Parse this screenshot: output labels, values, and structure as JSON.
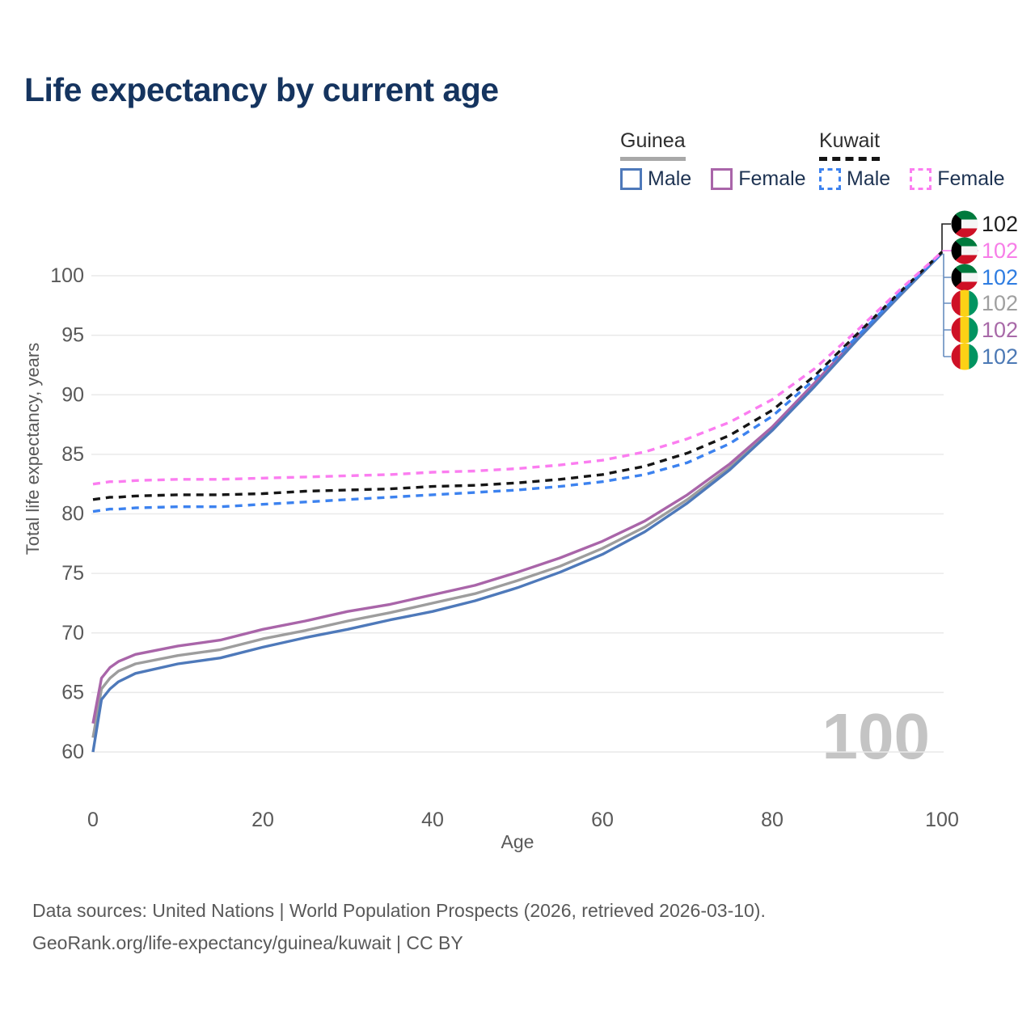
{
  "title": "Life expectancy by current age",
  "legend": {
    "groups": [
      {
        "country": "Guinea",
        "line_style": "solid",
        "items": [
          {
            "label": "Male",
            "color_key": "guinea_male"
          },
          {
            "label": "Female",
            "color_key": "guinea_female"
          }
        ]
      },
      {
        "country": "Kuwait",
        "line_style": "dashed",
        "items": [
          {
            "label": "Male",
            "color_key": "kuwait_male"
          },
          {
            "label": "Female",
            "color_key": "kuwait_female"
          }
        ]
      }
    ]
  },
  "colors": {
    "guinea_male": "#4e79ba",
    "guinea_female": "#a965a9",
    "guinea_both": "#9d9d9d",
    "kuwait_male": "#3c82ef",
    "kuwait_female": "#fb7df0",
    "kuwait_both": "#161616",
    "right_label_pink": "#f77ee8",
    "right_label_blue": "#2f7de1",
    "right_label_gray": "#a0a0a0",
    "right_label_purple": "#a869a8",
    "right_label_steel": "#4c79b5",
    "right_label_black": "#1f1f1f",
    "grid": "#e9e9e9",
    "axis_text": "#595959",
    "watermark": "#c4c4c4",
    "kuwait_flag_green": "#007a3d",
    "kuwait_flag_white": "#f5f5f5",
    "kuwait_flag_red": "#ce1126",
    "kuwait_flag_black": "#000000",
    "guinea_flag_red": "#ce1126",
    "guinea_flag_yellow": "#fcd116",
    "guinea_flag_green": "#009460"
  },
  "right_labels": [
    {
      "flag": "kuwait",
      "series": "Kuwait both sexes",
      "value": "102",
      "color_key": "right_label_black"
    },
    {
      "flag": "kuwait",
      "series": "Kuwait female",
      "value": "102",
      "color_key": "right_label_pink"
    },
    {
      "flag": "kuwait",
      "series": "Kuwait male",
      "value": "102",
      "color_key": "right_label_blue"
    },
    {
      "flag": "guinea",
      "series": "Guinea both sexes",
      "value": "102",
      "color_key": "right_label_gray"
    },
    {
      "flag": "guinea",
      "series": "Guinea female",
      "value": "102",
      "color_key": "right_label_purple"
    },
    {
      "flag": "guinea",
      "series": "Guinea male",
      "value": "102",
      "color_key": "right_label_steel"
    }
  ],
  "watermark": "100",
  "footer": {
    "line1": "Data sources: United Nations | World Population Prospects (2026, retrieved 2026-03-10).",
    "line2": "GeoRank.org/life-expectancy/guinea/kuwait | CC BY"
  },
  "chart_data": {
    "type": "line",
    "title": "Life expectancy by current age",
    "xlabel": "Age",
    "ylabel": "Total life expectancy, years",
    "xlim": [
      0,
      100
    ],
    "ylim": [
      60,
      100
    ],
    "xticks": [
      0,
      20,
      40,
      60,
      80,
      100
    ],
    "yticks": [
      60,
      65,
      70,
      75,
      80,
      85,
      90,
      95,
      100
    ],
    "grid": "horizontal",
    "legend_position": "top-right",
    "x": [
      0,
      1,
      2,
      3,
      5,
      10,
      15,
      20,
      25,
      30,
      35,
      40,
      45,
      50,
      55,
      60,
      65,
      70,
      75,
      80,
      85,
      90,
      95,
      100
    ],
    "series": [
      {
        "name": "Guinea both sexes",
        "country": "Guinea",
        "sex": "both",
        "style": "solid",
        "color_key": "guinea_both",
        "end_label": "102",
        "values": [
          61.2,
          65.3,
          66.2,
          66.8,
          67.4,
          68.1,
          68.6,
          69.5,
          70.2,
          71.0,
          71.7,
          72.5,
          73.3,
          74.4,
          75.6,
          77.1,
          78.9,
          81.2,
          83.9,
          87.1,
          90.8,
          94.7,
          98.3,
          101.9
        ]
      },
      {
        "name": "Guinea female",
        "country": "Guinea",
        "sex": "female",
        "style": "solid",
        "color_key": "guinea_female",
        "end_label": "102",
        "values": [
          62.4,
          66.2,
          67.1,
          67.6,
          68.2,
          68.9,
          69.4,
          70.3,
          71.0,
          71.8,
          72.4,
          73.2,
          74.0,
          75.1,
          76.3,
          77.7,
          79.4,
          81.6,
          84.2,
          87.3,
          91.0,
          94.8,
          98.4,
          102.0
        ]
      },
      {
        "name": "Guinea male",
        "country": "Guinea",
        "sex": "male",
        "style": "solid",
        "color_key": "guinea_male",
        "end_label": "102",
        "values": [
          60.0,
          64.4,
          65.3,
          65.9,
          66.6,
          67.4,
          67.9,
          68.8,
          69.6,
          70.3,
          71.1,
          71.8,
          72.7,
          73.8,
          75.1,
          76.6,
          78.5,
          80.9,
          83.7,
          87.0,
          90.7,
          94.6,
          98.3,
          101.9
        ]
      },
      {
        "name": "Kuwait both sexes",
        "country": "Kuwait",
        "sex": "both",
        "style": "dashed",
        "color_key": "kuwait_both",
        "end_label": "102",
        "values": [
          81.2,
          81.3,
          81.4,
          81.4,
          81.5,
          81.6,
          81.6,
          81.7,
          81.9,
          82.0,
          82.1,
          82.3,
          82.4,
          82.6,
          82.9,
          83.3,
          84.0,
          85.1,
          86.6,
          88.7,
          91.6,
          95.1,
          98.6,
          102.0
        ]
      },
      {
        "name": "Kuwait male",
        "country": "Kuwait",
        "sex": "male",
        "style": "dashed",
        "color_key": "kuwait_male",
        "end_label": "102",
        "values": [
          80.2,
          80.3,
          80.4,
          80.4,
          80.5,
          80.6,
          80.6,
          80.8,
          81.0,
          81.2,
          81.4,
          81.6,
          81.8,
          82.0,
          82.3,
          82.7,
          83.3,
          84.3,
          85.9,
          88.2,
          91.3,
          94.9,
          98.5,
          101.9
        ]
      },
      {
        "name": "Kuwait female",
        "country": "Kuwait",
        "sex": "female",
        "style": "dashed",
        "color_key": "kuwait_female",
        "end_label": "102",
        "values": [
          82.5,
          82.6,
          82.7,
          82.7,
          82.8,
          82.9,
          82.9,
          83.0,
          83.1,
          83.2,
          83.3,
          83.5,
          83.6,
          83.8,
          84.1,
          84.5,
          85.2,
          86.3,
          87.7,
          89.6,
          92.2,
          95.4,
          98.8,
          102.0
        ]
      }
    ]
  }
}
